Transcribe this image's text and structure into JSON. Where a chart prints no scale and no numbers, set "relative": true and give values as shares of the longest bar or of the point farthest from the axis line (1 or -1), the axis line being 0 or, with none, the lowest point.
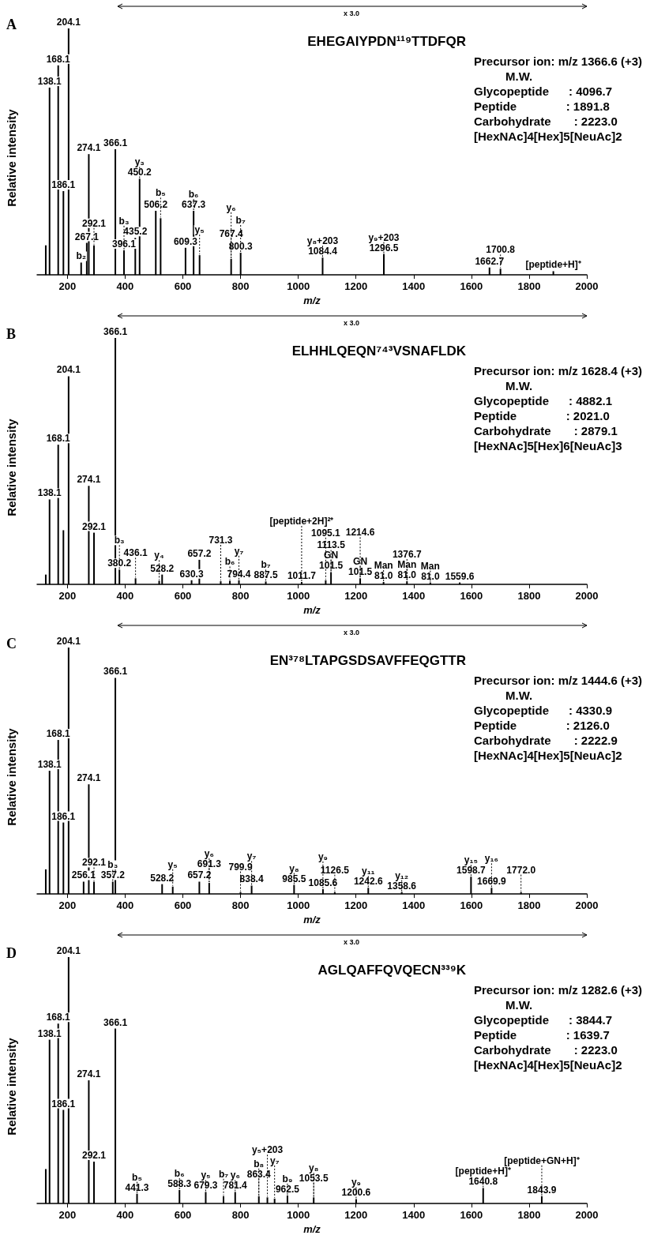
{
  "chart_data": [
    {
      "type": "bar",
      "title": "A",
      "xlabel": "m/z",
      "ylabel": "Relative intensity",
      "relative": true,
      "xlim": [
        95,
        2000
      ],
      "xticks": [
        200,
        400,
        600,
        800,
        1000,
        1200,
        1400,
        1600,
        1800,
        2000
      ],
      "color": "#000000",
      "x": [
        125,
        138.1,
        168.1,
        186.1,
        204.1,
        247.6,
        267.1,
        274.1,
        292.1,
        366.1,
        396.1,
        435.2,
        450.2,
        506.2,
        523,
        609.3,
        637.3,
        658,
        767.4,
        800.3,
        1084.4,
        1296.5,
        1662.7,
        1700.8,
        1884
      ],
      "values": [
        0.12,
        0.76,
        0.85,
        0.34,
        1,
        0.05,
        0.13,
        0.49,
        0.12,
        0.51,
        0.1,
        0.15,
        0.39,
        0.26,
        0.23,
        0.11,
        0.26,
        0.08,
        0.065,
        0.09,
        0.07,
        0.085,
        0.03,
        0.025,
        0.015
      ],
      "annotations": [
        "EHEGAIYPDN¹¹⁹TTDFQR",
        "Precursor ion: m/z 1366.6 (+3)",
        "M.W.",
        "Glycopeptide      : 4096.7",
        "Peptide               : 1891.8",
        "Carbohydrate       : 2223.0",
        "[HexNAc]4[Hex]5[NeuAc]2",
        "x 3.0",
        {
          "text": "204.1",
          "x": 204.1,
          "y": 1
        },
        {
          "text": "168.1",
          "x": 168.1,
          "y": 0.85
        },
        {
          "text": "138.1",
          "x": 138.1,
          "y": 0.76
        },
        {
          "text": "366.1",
          "x": 366.1,
          "y": 0.51
        },
        {
          "text": "274.1",
          "x": 274.1,
          "y": 0.49
        },
        {
          "text": "450.2",
          "x": 450.2,
          "y": 0.39
        },
        {
          "text": "186.1",
          "x": 186.1,
          "y": 0.34
        },
        {
          "text": "506.2",
          "x": 506.2,
          "y": 0.26
        },
        {
          "text": "637.3",
          "x": 637.3,
          "y": 0.26
        },
        {
          "text": "435.2",
          "x": 435.2,
          "y": 0.15
        },
        {
          "text": "267.1",
          "x": 267.1,
          "y": 0.13
        },
        {
          "text": "292.1",
          "x": 292.1,
          "y": 0.12
        },
        {
          "text": "609.3",
          "x": 609.3,
          "y": 0.11
        },
        {
          "text": "396.1",
          "x": 396.1,
          "y": 0.1
        },
        {
          "text": "800.3",
          "x": 800.3,
          "y": 0.09
        },
        {
          "text": "1296.5",
          "x": 1296.5,
          "y": 0.085
        },
        {
          "text": "1084.4",
          "x": 1084.4,
          "y": 0.07
        },
        {
          "text": "767.4",
          "x": 767.4,
          "y": 0.065
        },
        {
          "text": "1662.7",
          "x": 1662.7,
          "y": 0.03
        },
        {
          "text": "1700.8",
          "x": 1700.8,
          "y": 0.025
        },
        {
          "text": "b₂",
          "x": 247.6,
          "y": 0.05
        },
        {
          "text": "b₃",
          "x": 396.1,
          "y": 0.1
        },
        {
          "text": "b₅",
          "x": 523,
          "y": 0.23
        },
        {
          "text": "b₆",
          "x": 637.3,
          "y": 0.26
        },
        {
          "text": "b₇",
          "x": 800.3,
          "y": 0.09
        },
        {
          "text": "y₃",
          "x": 450.2,
          "y": 0.39
        },
        {
          "text": "y₅",
          "x": 658,
          "y": 0.08
        },
        {
          "text": "y₆",
          "x": 767.4,
          "y": 0.065
        },
        {
          "text": "y₈+203",
          "x": 1084.4,
          "y": 0.07
        },
        {
          "text": "y₉+203",
          "x": 1296.5,
          "y": 0.085
        },
        {
          "text": "[peptide+H]⁺",
          "x": 1884,
          "y": 0.015
        }
      ]
    },
    {
      "type": "bar",
      "title": "B",
      "xlabel": "m/z",
      "ylabel": "Relative intensity",
      "relative": true,
      "xlim": [
        95,
        2000
      ],
      "xticks": [
        200,
        400,
        600,
        800,
        1000,
        1200,
        1400,
        1600,
        1800,
        2000
      ],
      "color": "#000000",
      "x": [
        125,
        138.1,
        168.1,
        186.1,
        204.1,
        274.1,
        292.1,
        366.1,
        380.2,
        436.1,
        518,
        528.2,
        630.3,
        657.2,
        731.3,
        763,
        794.4,
        887.5,
        1011.7,
        1095.1,
        1113.5,
        1214.6,
        1295.6,
        1376.7,
        1457.7,
        1559.6
      ],
      "values": [
        0.04,
        0.345,
        0.567,
        0.22,
        0.845,
        0.4,
        0.21,
        1,
        0.06,
        0.025,
        0.015,
        0.04,
        0.017,
        0.1,
        0.013,
        0.015,
        0.017,
        0.012,
        0.01,
        0.017,
        0.05,
        0.025,
        0.01,
        0.013,
        0.008,
        0.008
      ],
      "annotations": [
        "ELHHLQEQN⁷⁴³VSNAFLDK",
        "Precursor ion: m/z 1628.4 (+3)",
        "M.W.",
        "Glycopeptide      : 4882.1",
        "Peptide               : 2021.0",
        "Carbohydrate       : 2879.1",
        "[HexNAc]5[Hex]6[NeuAc]3",
        "x 3.0",
        {
          "text": "101.5",
          "x": 1113.5,
          "y": 0.05
        },
        {
          "text": "GN",
          "x": 1113.5,
          "y": 0.05
        },
        {
          "text": "101.5",
          "x": 1214.6,
          "y": 0.025
        },
        {
          "text": "GN",
          "x": 1214.6,
          "y": 0.025
        },
        {
          "text": "81.0",
          "x": 1295.6,
          "y": 0.01
        },
        {
          "text": "Man",
          "x": 1295.6,
          "y": 0.01
        },
        {
          "text": "81.0",
          "x": 1376.7,
          "y": 0.013
        },
        {
          "text": "Man",
          "x": 1376.7,
          "y": 0.013
        },
        {
          "text": "81.0",
          "x": 1457.7,
          "y": 0.008
        },
        {
          "text": "Man",
          "x": 1457.7,
          "y": 0.008
        },
        {
          "text": "366.1",
          "x": 366.1,
          "y": 1
        },
        {
          "text": "204.1",
          "x": 204.1,
          "y": 0.845
        },
        {
          "text": "168.1",
          "x": 168.1,
          "y": 0.567
        },
        {
          "text": "274.1",
          "x": 274.1,
          "y": 0.4
        },
        {
          "text": "138.1",
          "x": 138.1,
          "y": 0.345
        },
        {
          "text": "292.1",
          "x": 292.1,
          "y": 0.21
        },
        {
          "text": "657.2",
          "x": 657.2,
          "y": 0.1
        },
        {
          "text": "380.2",
          "x": 380.2,
          "y": 0.06
        },
        {
          "text": "1113.5",
          "x": 1113.5,
          "y": 0.05
        },
        {
          "text": "528.2",
          "x": 528.2,
          "y": 0.04
        },
        {
          "text": "436.1",
          "x": 436.1,
          "y": 0.025
        },
        {
          "text": "1214.6",
          "x": 1214.6,
          "y": 0.025
        },
        {
          "text": "630.3",
          "x": 630.3,
          "y": 0.017
        },
        {
          "text": "794.4",
          "x": 794.4,
          "y": 0.017
        },
        {
          "text": "1095.1",
          "x": 1095.1,
          "y": 0.017
        },
        {
          "text": "731.3",
          "x": 731.3,
          "y": 0.013
        },
        {
          "text": "1376.7",
          "x": 1376.7,
          "y": 0.013
        },
        {
          "text": "887.5",
          "x": 887.5,
          "y": 0.012
        },
        {
          "text": "1011.7",
          "x": 1011.7,
          "y": 0.01
        },
        {
          "text": "1559.6",
          "x": 1559.6,
          "y": 0.008
        },
        {
          "text": "b₃",
          "x": 380.2,
          "y": 0.06
        },
        {
          "text": "b₆",
          "x": 763,
          "y": 0.015
        },
        {
          "text": "b₇",
          "x": 887.5,
          "y": 0.012
        },
        {
          "text": "y₄",
          "x": 518,
          "y": 0.015
        },
        {
          "text": "y₇",
          "x": 794.4,
          "y": 0.017
        },
        {
          "text": "[peptide+2H]²⁺",
          "x": 1011.7,
          "y": 0.01
        }
      ]
    },
    {
      "type": "bar",
      "title": "C",
      "xlabel": "m/z",
      "ylabel": "Relative intensity",
      "relative": true,
      "xlim": [
        95,
        2000
      ],
      "xticks": [
        200,
        400,
        600,
        800,
        1000,
        1200,
        1400,
        1600,
        1800,
        2000
      ],
      "color": "#000000",
      "x": [
        125,
        138.1,
        168.1,
        186.1,
        204.1,
        256.1,
        274.1,
        292.1,
        357.2,
        366.1,
        528.2,
        565,
        657.2,
        691.3,
        799.9,
        838.4,
        985.5,
        1085.6,
        1126.5,
        1242.6,
        1358.6,
        1598.7,
        1669.9,
        1772.0
      ],
      "values": [
        0.1,
        0.5,
        0.625,
        0.29,
        1,
        0.05,
        0.445,
        0.05,
        0.05,
        0.877,
        0.04,
        0.03,
        0.05,
        0.045,
        0.008,
        0.034,
        0.037,
        0.02,
        0.008,
        0.025,
        0.008,
        0.07,
        0.025,
        0.008
      ],
      "annotations": [
        "EN³⁷⁸LTAPGSDSAVFFEQGTTR",
        "Precursor ion: m/z 1444.6 (+3)",
        "M.W.",
        "Glycopeptide      : 4330.9",
        "Peptide               : 2126.0",
        "Carbohydrate       : 2222.9",
        "[HexNAc]4[Hex]5[NeuAc]2",
        "x 3.0",
        {
          "text": "204.1",
          "x": 204.1,
          "y": 1
        },
        {
          "text": "366.1",
          "x": 366.1,
          "y": 0.877
        },
        {
          "text": "168.1",
          "x": 168.1,
          "y": 0.625
        },
        {
          "text": "138.1",
          "x": 138.1,
          "y": 0.5
        },
        {
          "text": "274.1",
          "x": 274.1,
          "y": 0.445
        },
        {
          "text": "186.1",
          "x": 186.1,
          "y": 0.29
        },
        {
          "text": "1598.7",
          "x": 1598.7,
          "y": 0.07
        },
        {
          "text": "256.1",
          "x": 256.1,
          "y": 0.05
        },
        {
          "text": "292.1",
          "x": 292.1,
          "y": 0.05
        },
        {
          "text": "357.2",
          "x": 357.2,
          "y": 0.05
        },
        {
          "text": "657.2",
          "x": 657.2,
          "y": 0.05
        },
        {
          "text": "691.3",
          "x": 691.3,
          "y": 0.045
        },
        {
          "text": "528.2",
          "x": 528.2,
          "y": 0.04
        },
        {
          "text": "985.5",
          "x": 985.5,
          "y": 0.037
        },
        {
          "text": "838.4",
          "x": 838.4,
          "y": 0.034
        },
        {
          "text": "1242.6",
          "x": 1242.6,
          "y": 0.025
        },
        {
          "text": "1669.9",
          "x": 1669.9,
          "y": 0.025
        },
        {
          "text": "1085.6",
          "x": 1085.6,
          "y": 0.02
        },
        {
          "text": "799.9",
          "x": 799.9,
          "y": 0.008
        },
        {
          "text": "1126.5",
          "x": 1126.5,
          "y": 0.008
        },
        {
          "text": "1358.6",
          "x": 1358.6,
          "y": 0.008
        },
        {
          "text": "1772.0",
          "x": 1772.0,
          "y": 0.008
        },
        {
          "text": "b₃",
          "x": 357.2,
          "y": 0.05
        },
        {
          "text": "y₅",
          "x": 565,
          "y": 0.03
        },
        {
          "text": "y₆",
          "x": 691.3,
          "y": 0.045
        },
        {
          "text": "y₇",
          "x": 838.4,
          "y": 0.034
        },
        {
          "text": "y₈",
          "x": 985.5,
          "y": 0.037
        },
        {
          "text": "y₉",
          "x": 1085.6,
          "y": 0.02
        },
        {
          "text": "y₁₁",
          "x": 1242.6,
          "y": 0.025
        },
        {
          "text": "y₁₂",
          "x": 1358.6,
          "y": 0.008
        },
        {
          "text": "y₁₅",
          "x": 1598.7,
          "y": 0.07
        },
        {
          "text": "y₁₆",
          "x": 1669.9,
          "y": 0.025
        }
      ]
    },
    {
      "type": "bar",
      "title": "D",
      "xlabel": "m/z",
      "ylabel": "Relative intensity",
      "relative": true,
      "xlim": [
        95,
        2000
      ],
      "xticks": [
        200,
        400,
        600,
        800,
        1000,
        1200,
        1400,
        1600,
        1800,
        2000
      ],
      "color": "#000000",
      "x": [
        125,
        138.1,
        168.1,
        186.1,
        204.1,
        274.1,
        292.1,
        366.1,
        441.3,
        588.3,
        679.3,
        741,
        781.4,
        863.4,
        893,
        918,
        962.5,
        1053.5,
        1200.6,
        1640.8,
        1843.9
      ],
      "values": [
        0.14,
        0.665,
        0.73,
        0.38,
        1,
        0.5,
        0.17,
        0.71,
        0.04,
        0.055,
        0.047,
        0.03,
        0.047,
        0.03,
        0.025,
        0.02,
        0.033,
        0.025,
        0.018,
        0.063,
        0.03
      ],
      "annotations": [
        "AGLQAFFQVQECN³³⁹K",
        "Precursor ion: m/z 1282.6 (+3)",
        "M.W.",
        "Glycopeptide      : 3844.7",
        "Peptide               : 1639.7",
        "Carbohydrate       : 2223.0",
        "[HexNAc]4[Hex]5[NeuAc]2",
        "x 3.0",
        {
          "text": "204.1",
          "x": 204.1,
          "y": 1
        },
        {
          "text": "168.1",
          "x": 168.1,
          "y": 0.73
        },
        {
          "text": "366.1",
          "x": 366.1,
          "y": 0.71
        },
        {
          "text": "138.1",
          "x": 138.1,
          "y": 0.665
        },
        {
          "text": "274.1",
          "x": 274.1,
          "y": 0.5
        },
        {
          "text": "186.1",
          "x": 186.1,
          "y": 0.38
        },
        {
          "text": "292.1",
          "x": 292.1,
          "y": 0.17
        },
        {
          "text": "1640.8",
          "x": 1640.8,
          "y": 0.063
        },
        {
          "text": "588.3",
          "x": 588.3,
          "y": 0.055
        },
        {
          "text": "679.3",
          "x": 679.3,
          "y": 0.047
        },
        {
          "text": "781.4",
          "x": 781.4,
          "y": 0.047
        },
        {
          "text": "441.3",
          "x": 441.3,
          "y": 0.04
        },
        {
          "text": "962.5",
          "x": 962.5,
          "y": 0.033
        },
        {
          "text": "863.4",
          "x": 863.4,
          "y": 0.03
        },
        {
          "text": "1843.9",
          "x": 1843.9,
          "y": 0.03
        },
        {
          "text": "1053.5",
          "x": 1053.5,
          "y": 0.025
        },
        {
          "text": "1200.6",
          "x": 1200.6,
          "y": 0.018
        },
        {
          "text": "b₅",
          "x": 441.3,
          "y": 0.04
        },
        {
          "text": "b₆",
          "x": 588.3,
          "y": 0.055
        },
        {
          "text": "b₇",
          "x": 741,
          "y": 0.03
        },
        {
          "text": "b₈",
          "x": 863.4,
          "y": 0.03
        },
        {
          "text": "b₉",
          "x": 962.5,
          "y": 0.033
        },
        {
          "text": "y₅",
          "x": 679.3,
          "y": 0.047
        },
        {
          "text": "y₆",
          "x": 781.4,
          "y": 0.047
        },
        {
          "text": "y₇",
          "x": 918,
          "y": 0.02
        },
        {
          "text": "y₈",
          "x": 1053.5,
          "y": 0.025
        },
        {
          "text": "y₉",
          "x": 1200.6,
          "y": 0.018
        },
        {
          "text": "y₅+203",
          "x": 893,
          "y": 0.025
        },
        {
          "text": "[peptide+H]⁺",
          "x": 1640.8,
          "y": 0.063
        },
        {
          "text": "[peptide+GN+H]⁺",
          "x": 1843.9,
          "y": 0.03
        }
      ]
    }
  ]
}
